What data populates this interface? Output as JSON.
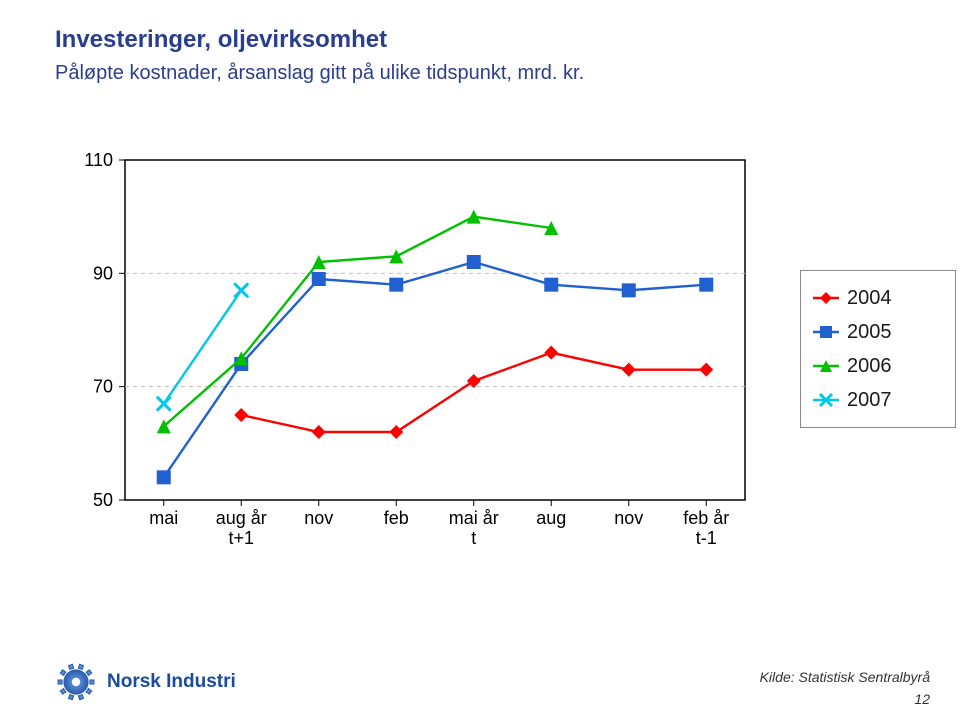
{
  "title": "Investeringer, oljevirksomhet",
  "subtitle": "Påløpte kostnader, årsanslag gitt på ulike tidspunkt, mrd. kr.",
  "source": "Kilde: Statistisk Sentralbyrå",
  "page_number": "12",
  "logo_text": "Norsk Industri",
  "chart": {
    "type": "line",
    "x_labels": [
      "mai",
      "aug år\nt+1",
      "nov",
      "feb",
      "mai år\nt",
      "aug",
      "nov",
      "feb år\nt-1"
    ],
    "ylim": [
      50,
      110
    ],
    "yticks": [
      50,
      70,
      90,
      110
    ],
    "grid_color": "#bfbfbf",
    "axis_color": "#000000",
    "label_fontsize": 18,
    "tick_fontsize": 18,
    "plot_background": "#ffffff",
    "line_width": 2.4,
    "marker_size": 7,
    "series": [
      {
        "name": "2004",
        "color": "#ff0000",
        "marker": "diamond",
        "values": [
          null,
          65,
          62,
          62,
          71,
          76,
          73,
          73
        ]
      },
      {
        "name": "2005",
        "color": "#2060d0",
        "marker": "square",
        "values": [
          54,
          74,
          89,
          88,
          92,
          88,
          87,
          88
        ]
      },
      {
        "name": "2006",
        "color": "#00c000",
        "marker": "triangle",
        "values": [
          63,
          75,
          92,
          93,
          100,
          98,
          null,
          null
        ]
      },
      {
        "name": "2007",
        "color": "#00c8e8",
        "marker": "x",
        "values": [
          67,
          87,
          null,
          null,
          null,
          null,
          null,
          null
        ]
      }
    ],
    "legend": {
      "items": [
        "2004",
        "2005",
        "2006",
        "2007"
      ],
      "border": "#888888"
    }
  }
}
